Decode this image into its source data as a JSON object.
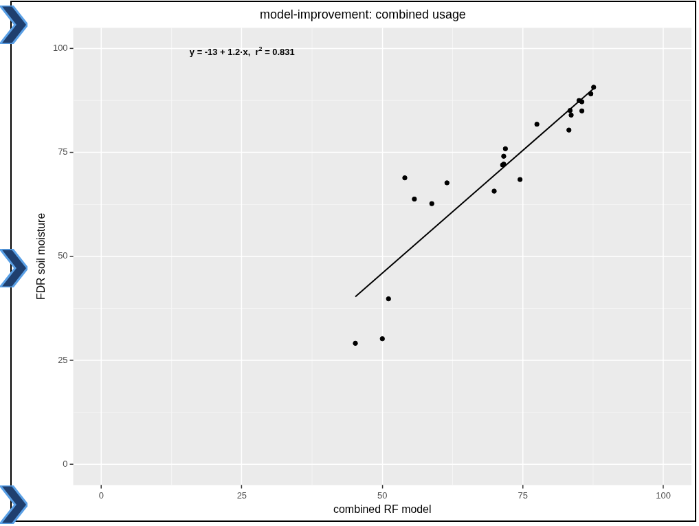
{
  "chart_data": {
    "type": "scatter",
    "title": "model-improvement: combined usage",
    "xlabel": "combined RF model",
    "ylabel": "FDR soil moisture",
    "xlim": [
      -5,
      105
    ],
    "ylim": [
      -5,
      105
    ],
    "xticks": [
      0,
      25,
      50,
      75,
      100
    ],
    "yticks": [
      0,
      25,
      50,
      75,
      100
    ],
    "grid": true,
    "legend": false,
    "annotations": [
      "y = -13 + 1.2·x,  r$^{2}$ = 0.831"
    ],
    "series": [
      {
        "color": "#000000",
        "marker": "circle",
        "x": [
          45.2,
          50.0,
          51.1,
          54.0,
          55.7,
          58.8,
          61.5,
          69.9,
          74.5,
          71.4,
          71.6,
          71.6,
          71.9,
          77.5,
          83.2,
          83.4,
          83.6,
          85.5,
          85.0,
          85.5,
          87.1,
          87.6
        ],
        "values": [
          29.1,
          30.2,
          39.8,
          68.9,
          63.8,
          62.7,
          67.7,
          65.7,
          68.5,
          72.0,
          72.2,
          74.1,
          75.9,
          81.8,
          80.4,
          85.1,
          84.0,
          85.0,
          87.5,
          87.2,
          89.1,
          90.7
        ]
      },
      {
        "type": "line",
        "color": "#000000",
        "marker": "none",
        "x": [
          45.2,
          87.6
        ],
        "values": [
          40.3,
          90.4
        ]
      }
    ]
  }
}
